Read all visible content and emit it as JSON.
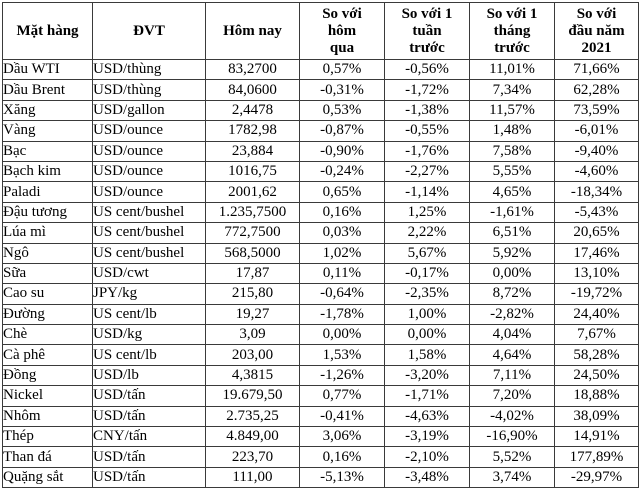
{
  "colors": {
    "border": "#3a3a3a",
    "text": "#000000",
    "background": "#ffffff"
  },
  "table": {
    "columns": [
      {
        "key": "commodity",
        "label": "Mặt hàng"
      },
      {
        "key": "unit",
        "label": "ĐVT"
      },
      {
        "key": "today",
        "label": "Hôm nay"
      },
      {
        "key": "vs-yesterday",
        "label": "So với\nhôm\nqua"
      },
      {
        "key": "vs-week",
        "label": "So với 1\ntuần\ntrước"
      },
      {
        "key": "vs-month",
        "label": "So với 1\ntháng\ntrước"
      },
      {
        "key": "vs-ytd",
        "label": "So với\nđầu năm\n2021"
      }
    ],
    "rows": [
      [
        "Dầu WTI",
        "USD/thùng",
        "83,2700",
        "0,57%",
        "-0,56%",
        "11,01%",
        "71,66%"
      ],
      [
        "Dầu Brent",
        "USD/thùng",
        "84,0600",
        "-0,31%",
        "-1,72%",
        "7,34%",
        "62,28%"
      ],
      [
        "Xăng",
        "USD/gallon",
        "2,4478",
        "0,53%",
        "-1,38%",
        "11,57%",
        "73,59%"
      ],
      [
        "Vàng",
        "USD/ounce",
        "1782,98",
        "-0,87%",
        "-0,55%",
        "1,48%",
        "-6,01%"
      ],
      [
        "Bạc",
        "USD/ounce",
        "23,884",
        "-0,90%",
        "-1,76%",
        "7,58%",
        "-9,40%"
      ],
      [
        "Bạch kim",
        "USD/ounce",
        "1016,75",
        "-0,24%",
        "-2,27%",
        "5,55%",
        "-4,60%"
      ],
      [
        "Paladi",
        "USD/ounce",
        "2001,62",
        "0,65%",
        "-1,14%",
        "4,65%",
        "-18,34%"
      ],
      [
        "Đậu tương",
        "US cent/bushel",
        "1.235,7500",
        "0,16%",
        "1,25%",
        "-1,61%",
        "-5,43%"
      ],
      [
        "Lúa mì",
        "US cent/bushel",
        "772,7500",
        "0,03%",
        "2,22%",
        "6,51%",
        "20,65%"
      ],
      [
        "Ngô",
        "US cent/bushel",
        "568,5000",
        "1,02%",
        "5,67%",
        "5,92%",
        "17,46%"
      ],
      [
        "Sữa",
        "USD/cwt",
        "17,87",
        "0,11%",
        "-0,17%",
        "0,00%",
        "13,10%"
      ],
      [
        "Cao su",
        "JPY/kg",
        "215,80",
        "-0,64%",
        "-2,35%",
        "8,72%",
        "-19,72%"
      ],
      [
        "Đường",
        "US cent/lb",
        "19,27",
        "-1,78%",
        "1,00%",
        "-2,82%",
        "24,40%"
      ],
      [
        "Chè",
        "USD/kg",
        "3,09",
        "0,00%",
        "0,00%",
        "4,04%",
        "7,67%"
      ],
      [
        "Cà phê",
        "US cent/lb",
        "203,00",
        "1,53%",
        "1,58%",
        "4,64%",
        "58,28%"
      ],
      [
        "Đồng",
        "USD/lb",
        "4,3815",
        "-1,26%",
        "-3,20%",
        "7,11%",
        "24,50%"
      ],
      [
        "Nickel",
        "USD/tấn",
        "19.679,50",
        "0,77%",
        "-1,71%",
        "7,20%",
        "18,88%"
      ],
      [
        "Nhôm",
        "USD/tấn",
        "2.735,25",
        "-0,41%",
        "-4,63%",
        "-4,02%",
        "38,09%"
      ],
      [
        "Thép",
        "CNY/tấn",
        "4.849,00",
        "3,06%",
        "-3,19%",
        "-16,90%",
        "14,91%"
      ],
      [
        "Than đá",
        "USD/tấn",
        "223,70",
        "0,16%",
        "-2,10%",
        "5,52%",
        "177,89%"
      ],
      [
        "Quặng sắt",
        "USD/tấn",
        "111,00",
        "-5,13%",
        "-3,48%",
        "3,74%",
        "-29,97%"
      ]
    ]
  }
}
